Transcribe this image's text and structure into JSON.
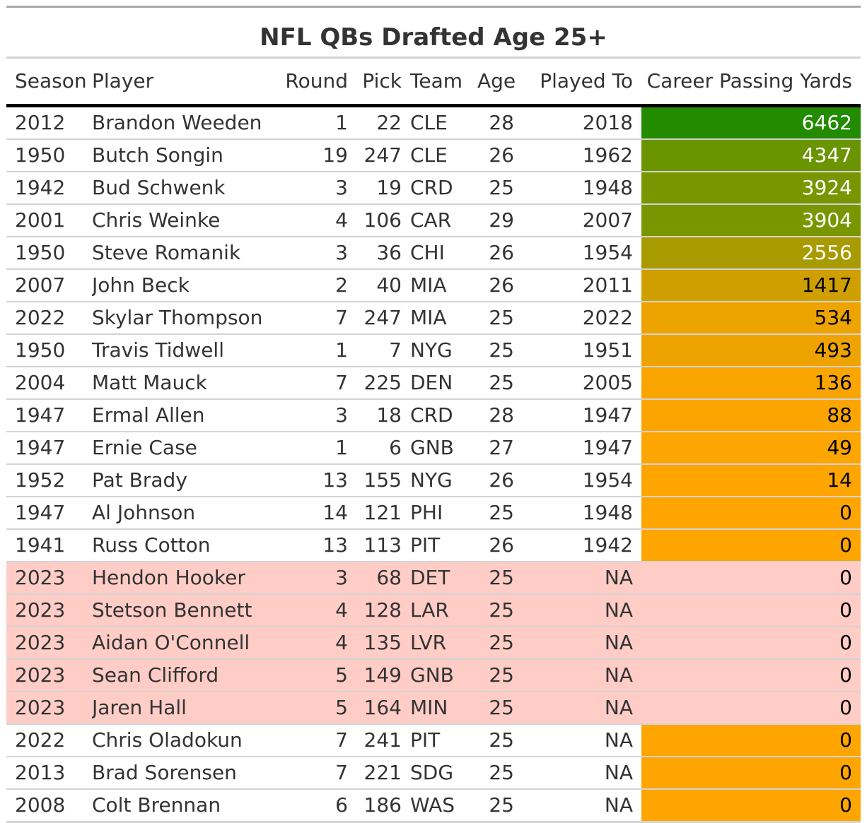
{
  "chart_data": {
    "type": "table",
    "title": "NFL QBs Drafted Age 25+",
    "columns": [
      "Season",
      "Player",
      "Round",
      "Pick",
      "Team",
      "Age",
      "Played To",
      "Career Passing Yards"
    ],
    "color_scale": {
      "low": "#ffa500",
      "high": "#228b00",
      "highlight_row": "#ffcdc6"
    },
    "rows": [
      {
        "season": "2012",
        "player": "Brandon Weeden",
        "round": "1",
        "pick": "22",
        "team": "CLE",
        "age": "28",
        "played_to": "2018",
        "yards": "6462",
        "highlight": false
      },
      {
        "season": "1950",
        "player": "Butch Songin",
        "round": "19",
        "pick": "247",
        "team": "CLE",
        "age": "26",
        "played_to": "1962",
        "yards": "4347",
        "highlight": false
      },
      {
        "season": "1942",
        "player": "Bud Schwenk",
        "round": "3",
        "pick": "19",
        "team": "CRD",
        "age": "25",
        "played_to": "1948",
        "yards": "3924",
        "highlight": false
      },
      {
        "season": "2001",
        "player": "Chris Weinke",
        "round": "4",
        "pick": "106",
        "team": "CAR",
        "age": "29",
        "played_to": "2007",
        "yards": "3904",
        "highlight": false
      },
      {
        "season": "1950",
        "player": "Steve Romanik",
        "round": "3",
        "pick": "36",
        "team": "CHI",
        "age": "26",
        "played_to": "1954",
        "yards": "2556",
        "highlight": false
      },
      {
        "season": "2007",
        "player": "John Beck",
        "round": "2",
        "pick": "40",
        "team": "MIA",
        "age": "26",
        "played_to": "2011",
        "yards": "1417",
        "highlight": false
      },
      {
        "season": "2022",
        "player": "Skylar Thompson",
        "round": "7",
        "pick": "247",
        "team": "MIA",
        "age": "25",
        "played_to": "2022",
        "yards": "534",
        "highlight": false
      },
      {
        "season": "1950",
        "player": "Travis Tidwell",
        "round": "1",
        "pick": "7",
        "team": "NYG",
        "age": "25",
        "played_to": "1951",
        "yards": "493",
        "highlight": false
      },
      {
        "season": "2004",
        "player": "Matt Mauck",
        "round": "7",
        "pick": "225",
        "team": "DEN",
        "age": "25",
        "played_to": "2005",
        "yards": "136",
        "highlight": false
      },
      {
        "season": "1947",
        "player": "Ermal Allen",
        "round": "3",
        "pick": "18",
        "team": "CRD",
        "age": "28",
        "played_to": "1947",
        "yards": "88",
        "highlight": false
      },
      {
        "season": "1947",
        "player": "Ernie Case",
        "round": "1",
        "pick": "6",
        "team": "GNB",
        "age": "27",
        "played_to": "1947",
        "yards": "49",
        "highlight": false
      },
      {
        "season": "1952",
        "player": "Pat Brady",
        "round": "13",
        "pick": "155",
        "team": "NYG",
        "age": "26",
        "played_to": "1954",
        "yards": "14",
        "highlight": false
      },
      {
        "season": "1947",
        "player": "Al Johnson",
        "round": "14",
        "pick": "121",
        "team": "PHI",
        "age": "25",
        "played_to": "1948",
        "yards": "0",
        "highlight": false
      },
      {
        "season": "1941",
        "player": "Russ Cotton",
        "round": "13",
        "pick": "113",
        "team": "PIT",
        "age": "26",
        "played_to": "1942",
        "yards": "0",
        "highlight": false
      },
      {
        "season": "2023",
        "player": "Hendon Hooker",
        "round": "3",
        "pick": "68",
        "team": "DET",
        "age": "25",
        "played_to": "NA",
        "yards": "0",
        "highlight": true
      },
      {
        "season": "2023",
        "player": "Stetson Bennett",
        "round": "4",
        "pick": "128",
        "team": "LAR",
        "age": "25",
        "played_to": "NA",
        "yards": "0",
        "highlight": true
      },
      {
        "season": "2023",
        "player": "Aidan O'Connell",
        "round": "4",
        "pick": "135",
        "team": "LVR",
        "age": "25",
        "played_to": "NA",
        "yards": "0",
        "highlight": true
      },
      {
        "season": "2023",
        "player": "Sean Clifford",
        "round": "5",
        "pick": "149",
        "team": "GNB",
        "age": "25",
        "played_to": "NA",
        "yards": "0",
        "highlight": true
      },
      {
        "season": "2023",
        "player": "Jaren Hall",
        "round": "5",
        "pick": "164",
        "team": "MIN",
        "age": "25",
        "played_to": "NA",
        "yards": "0",
        "highlight": true
      },
      {
        "season": "2022",
        "player": "Chris Oladokun",
        "round": "7",
        "pick": "241",
        "team": "PIT",
        "age": "25",
        "played_to": "NA",
        "yards": "0",
        "highlight": false
      },
      {
        "season": "2013",
        "player": "Brad Sorensen",
        "round": "7",
        "pick": "221",
        "team": "SDG",
        "age": "25",
        "played_to": "NA",
        "yards": "0",
        "highlight": false
      },
      {
        "season": "2008",
        "player": "Colt Brennan",
        "round": "6",
        "pick": "186",
        "team": "WAS",
        "age": "25",
        "played_to": "NA",
        "yards": "0",
        "highlight": false
      }
    ]
  }
}
